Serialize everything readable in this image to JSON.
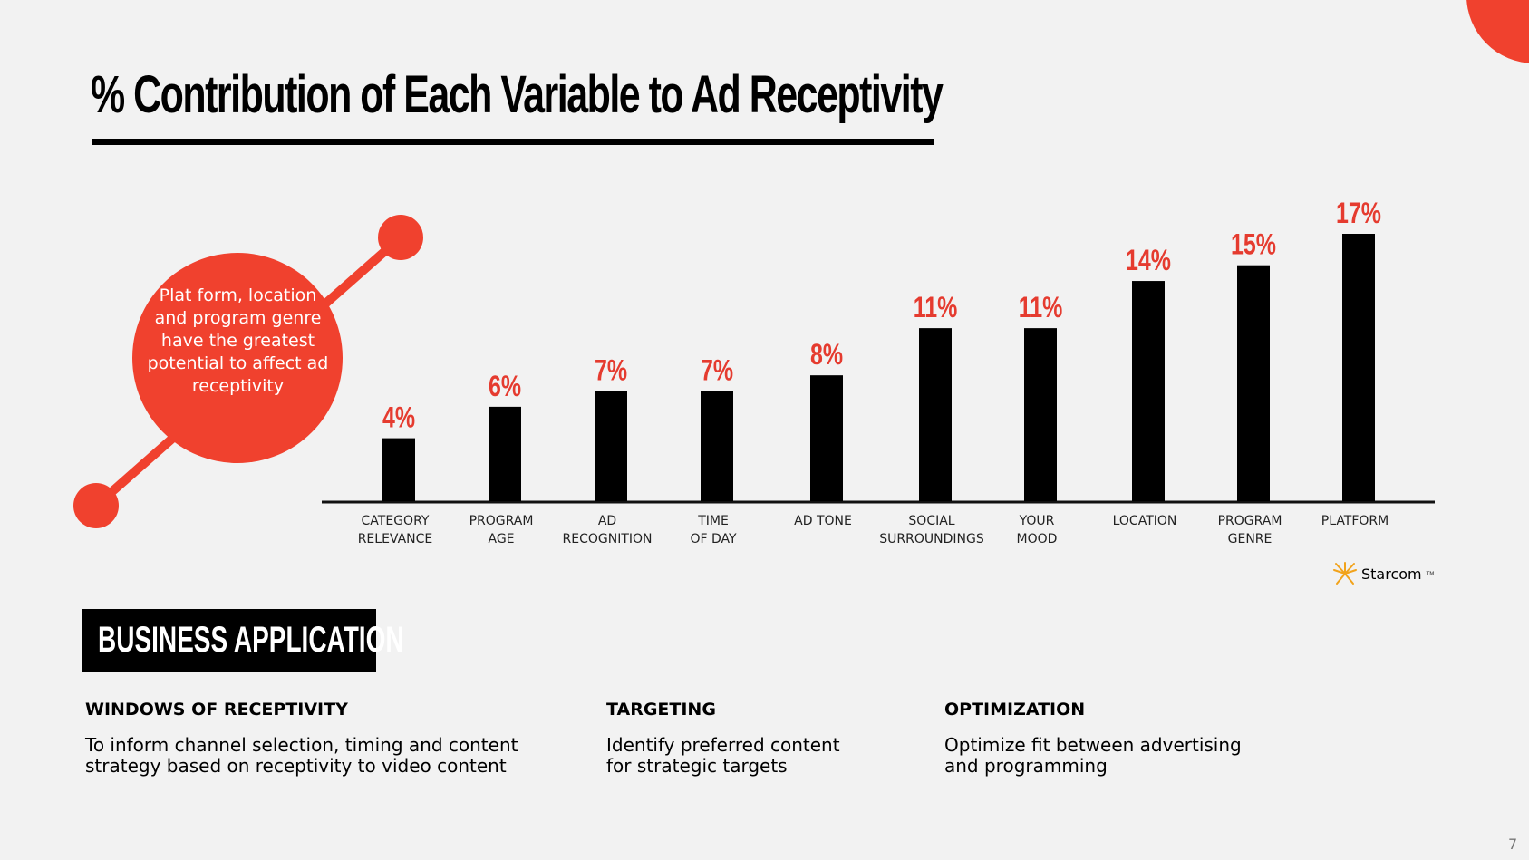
{
  "slide": {
    "title": "% Contribution of Each Variable to Ad Receptivity",
    "page_number": "7",
    "accent_color": "#f0412e"
  },
  "callout": {
    "text": "Plat form, location and program genre have the greatest potential to affect ad receptivity"
  },
  "chart_data": {
    "type": "bar",
    "title": "% Contribution of Each Variable to Ad Receptivity",
    "categories": [
      [
        "CATEGORY",
        "RELEVANCE"
      ],
      [
        "PROGRAM",
        "AGE"
      ],
      [
        "AD",
        "RECOGNITION"
      ],
      [
        "TIME",
        "OF DAY"
      ],
      [
        "AD TONE"
      ],
      [
        "SOCIAL",
        "SURROUNDINGS"
      ],
      [
        "YOUR",
        "MOOD"
      ],
      [
        "LOCATION"
      ],
      [
        "PROGRAM",
        "GENRE"
      ],
      [
        "PLATFORM"
      ]
    ],
    "values": [
      4,
      6,
      7,
      7,
      8,
      11,
      11,
      14,
      15,
      17
    ],
    "value_labels": [
      "4%",
      "6%",
      "7%",
      "7%",
      "8%",
      "11%",
      "11%",
      "14%",
      "15%",
      "17%"
    ],
    "bar_color": "#000000",
    "label_color": "#e53b2f",
    "xlabel": "",
    "ylabel": "",
    "ylim": [
      0,
      17
    ],
    "grid": false
  },
  "logo": {
    "text": "Starcom",
    "tm": "TM",
    "icon": "starburst-icon"
  },
  "business": {
    "title": "BUSINESS APPLICATION",
    "columns": [
      {
        "heading": "WINDOWS OF RECEPTIVITY",
        "text": "To inform channel selection, timing and content\nstrategy based on receptivity to video content"
      },
      {
        "heading": "TARGETING",
        "text": "Identify preferred content\nfor strategic targets"
      },
      {
        "heading": "OPTIMIZATION",
        "text": "Optimize fit between advertising\nand programming"
      }
    ]
  }
}
